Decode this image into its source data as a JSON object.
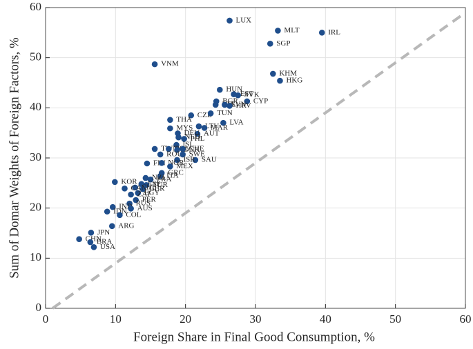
{
  "chart_data": {
    "type": "scatter",
    "x_label": "Foreign Share in Final Good Consumption, %",
    "y_label": "Sum of Domar Weights of Foreign Factors, %",
    "color": "#1f4e8c",
    "labels": [
      "LUX",
      "MLT",
      "IRL",
      "SGP",
      "VNM",
      "KHM",
      "HKG",
      "HUN",
      "EST",
      "SVK",
      "CYP",
      "BGR",
      "BEL",
      "SVN",
      "HRV",
      "CZE",
      "TUN",
      "THA",
      "LVA",
      "MYS",
      "LTU",
      "MAR",
      "AUT",
      "DEU",
      "NLD",
      "PHL",
      "ISL",
      "TWN",
      "POL",
      "DNK",
      "CHE",
      "ROU",
      "SWE",
      "SAU",
      "ISR",
      "FIN",
      "NOR",
      "MEX",
      "GRC",
      "ITA",
      "FRA",
      "NZL",
      "KOR",
      "ESP",
      "TUR",
      "CHL",
      "GBR",
      "CAN",
      "EGY",
      "ZAF",
      "PER",
      "RUS",
      "IND",
      "AUS",
      "IDN",
      "COL",
      "ARG",
      "JPN",
      "CHN",
      "BRA",
      "USA"
    ],
    "x": [
      26.3,
      33.2,
      39.5,
      32.1,
      15.6,
      32.5,
      33.5,
      24.9,
      26.9,
      27.5,
      28.8,
      24.4,
      24.3,
      25.6,
      26.3,
      20.8,
      23.6,
      17.8,
      25.4,
      17.8,
      21.9,
      22.7,
      21.7,
      18.9,
      19.0,
      19.8,
      18.7,
      15.6,
      17.6,
      18.8,
      19.6,
      16.4,
      19.6,
      21.4,
      18.8,
      14.5,
      16.6,
      17.8,
      16.6,
      16.4,
      15.0,
      14.3,
      9.9,
      13.7,
      14.4,
      12.8,
      13.9,
      11.3,
      13.2,
      12.2,
      12.9,
      12.0,
      9.6,
      12.2,
      8.8,
      10.6,
      9.5,
      6.5,
      4.8,
      6.4,
      6.9
    ],
    "y": [
      57.4,
      55.4,
      55.0,
      52.8,
      48.7,
      46.8,
      45.4,
      43.6,
      42.7,
      42.5,
      41.3,
      41.3,
      40.6,
      40.6,
      40.4,
      38.5,
      38.9,
      37.6,
      37.0,
      35.9,
      36.3,
      36.0,
      34.8,
      34.9,
      34.1,
      33.8,
      32.6,
      31.8,
      31.8,
      31.6,
      31.8,
      30.7,
      30.7,
      29.6,
      29.6,
      28.9,
      29.0,
      28.3,
      27.0,
      26.4,
      25.7,
      26.0,
      25.2,
      24.8,
      24.6,
      24.1,
      23.8,
      23.9,
      23.0,
      22.7,
      21.6,
      20.9,
      20.2,
      19.9,
      19.3,
      18.6,
      16.4,
      15.1,
      13.8,
      13.2,
      12.2
    ],
    "reference_line": {
      "x": [
        1,
        60
      ],
      "y": [
        0,
        59
      ],
      "color": "#b8b8b8"
    },
    "xlim": [
      0,
      60
    ],
    "ylim": [
      0,
      60
    ],
    "xticks": [
      0,
      10,
      20,
      30,
      40,
      50,
      60
    ],
    "yticks": [
      0,
      10,
      20,
      30,
      40,
      50,
      60
    ],
    "grid": true
  }
}
